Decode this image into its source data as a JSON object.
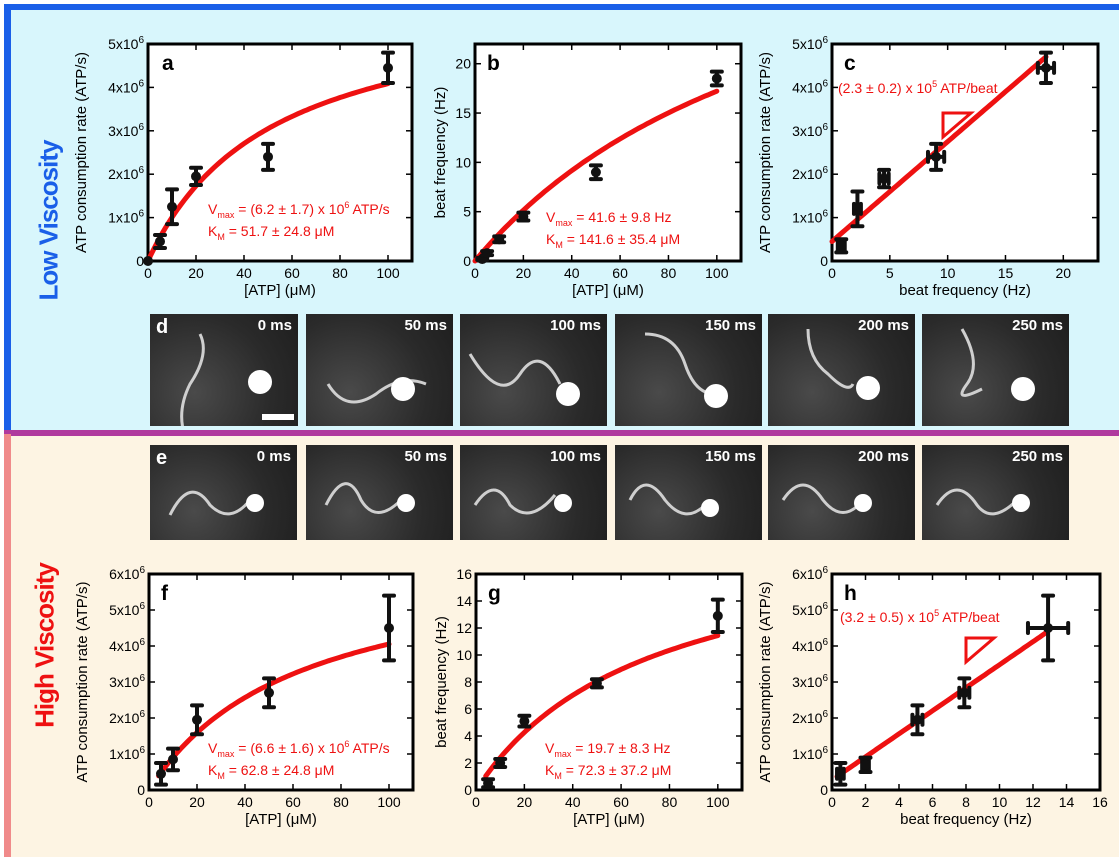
{
  "sections": {
    "low": {
      "label": "Low Viscosity",
      "color": "#1a5fe8",
      "bg": "#d8f6fc"
    },
    "high": {
      "label": "High Viscosity",
      "color": "#ee1111",
      "bg": "#fdf4e3"
    }
  },
  "colors": {
    "fit": "#ee1111",
    "marker": "#111111",
    "annotation": "#ee1111",
    "divider_top": "#1a5fe8",
    "divider_mid": "#b03a9e",
    "divider_bottom": "#f08a8a"
  },
  "frames": {
    "d": {
      "letter": "d",
      "times": [
        "0 ms",
        "50 ms",
        "100 ms",
        "150 ms",
        "200 ms",
        "250 ms"
      ]
    },
    "e": {
      "letter": "e",
      "times": [
        "0 ms",
        "50 ms",
        "100 ms",
        "150 ms",
        "200 ms",
        "250 ms"
      ]
    }
  },
  "chart_data": [
    {
      "panel": "a",
      "type": "scatter",
      "xlabel": "[ATP] (μM)",
      "ylabel": "ATP consumption rate (ATP/s)",
      "xlim": [
        0,
        110
      ],
      "ylim": [
        0,
        5000000
      ],
      "xticks": [
        0,
        20,
        40,
        60,
        80,
        100
      ],
      "xtick_labels": [
        "0",
        "20",
        "40",
        "60",
        "80",
        "100"
      ],
      "yticks": [
        0,
        1000000,
        2000000,
        3000000,
        4000000,
        5000000
      ],
      "ytick_labels": [
        "0",
        "1x10⁶",
        "2x10⁶",
        "3x10⁶",
        "4x10⁶",
        "5x10⁶"
      ],
      "points": [
        {
          "x": 0,
          "y": 0,
          "yerr": 0
        },
        {
          "x": 5,
          "y": 450000,
          "yerr": 150000
        },
        {
          "x": 10,
          "y": 1250000,
          "yerr": 400000
        },
        {
          "x": 20,
          "y": 1950000,
          "yerr": 200000
        },
        {
          "x": 50,
          "y": 2400000,
          "yerr": 300000
        },
        {
          "x": 100,
          "y": 4450000,
          "yerr": 350000
        }
      ],
      "fit": {
        "model": "michaelis-menten",
        "vmax": 6200000,
        "km": 51.7
      },
      "annotation": {
        "line1": {
          "prefix": "V",
          "sub": "max",
          "text": " = (6.2 ± 1.7) x 10⁶ ATP/s"
        },
        "line2": {
          "prefix": "K",
          "sub": "M",
          "text": " =  51.7 ± 24.8 μM"
        }
      }
    },
    {
      "panel": "b",
      "type": "scatter",
      "xlabel": "[ATP] (μM)",
      "ylabel": "beat frequency (Hz)",
      "xlim": [
        0,
        110
      ],
      "ylim": [
        0,
        22
      ],
      "xticks": [
        0,
        20,
        40,
        60,
        80,
        100
      ],
      "xtick_labels": [
        "0",
        "20",
        "40",
        "60",
        "80",
        "100"
      ],
      "yticks": [
        0,
        5,
        10,
        15,
        20
      ],
      "ytick_labels": [
        "0",
        "5",
        "10",
        "15",
        "20"
      ],
      "points": [
        {
          "x": 3,
          "y": 0.2,
          "yerr": 0.1
        },
        {
          "x": 5,
          "y": 0.8,
          "yerr": 0.2
        },
        {
          "x": 10,
          "y": 2.2,
          "yerr": 0.3
        },
        {
          "x": 20,
          "y": 4.5,
          "yerr": 0.4
        },
        {
          "x": 50,
          "y": 9.0,
          "yerr": 0.7
        },
        {
          "x": 100,
          "y": 18.5,
          "yerr": 0.7
        }
      ],
      "fit": {
        "model": "michaelis-menten",
        "vmax": 41.6,
        "km": 141.6
      },
      "annotation": {
        "line1": {
          "prefix": "V",
          "sub": "max",
          "text": " = 41.6 ± 9.8 Hz"
        },
        "line2": {
          "prefix": "K",
          "sub": "M",
          "text": " =  141.6 ± 35.4 μM"
        }
      }
    },
    {
      "panel": "c",
      "type": "scatter",
      "xlabel": "beat frequency (Hz)",
      "ylabel": "ATP consumption rate (ATP/s)",
      "xlim": [
        0,
        23
      ],
      "ylim": [
        0,
        5000000
      ],
      "xticks": [
        0,
        5,
        10,
        15,
        20
      ],
      "xtick_labels": [
        "0",
        "5",
        "10",
        "15",
        "20"
      ],
      "yticks": [
        0,
        1000000,
        2000000,
        3000000,
        4000000,
        5000000
      ],
      "ytick_labels": [
        "0",
        "1x10⁶",
        "2x10⁶",
        "3x10⁶",
        "4x10⁶",
        "5x10⁶"
      ],
      "points": [
        {
          "x": 0.8,
          "y": 350000,
          "xerr": 0.3,
          "yerr": 150000
        },
        {
          "x": 2.2,
          "y": 1200000,
          "xerr": 0.3,
          "yerr": 400000
        },
        {
          "x": 4.5,
          "y": 1900000,
          "xerr": 0.4,
          "yerr": 200000
        },
        {
          "x": 9.0,
          "y": 2400000,
          "xerr": 0.7,
          "yerr": 300000
        },
        {
          "x": 18.5,
          "y": 4450000,
          "xerr": 0.7,
          "yerr": 350000
        }
      ],
      "fit": {
        "model": "linear",
        "slope": 230000,
        "intercept": 450000,
        "x_range": [
          0,
          18.5
        ]
      },
      "annotation": {
        "text": "(2.3 ± 0.2) x 10⁵ ATP/beat"
      }
    },
    {
      "panel": "f",
      "type": "scatter",
      "xlabel": "[ATP] (μM)",
      "ylabel": "ATP consumption rate (ATP/s)",
      "xlim": [
        0,
        110
      ],
      "ylim": [
        0,
        6000000
      ],
      "xticks": [
        0,
        20,
        40,
        60,
        80,
        100
      ],
      "xtick_labels": [
        "0",
        "20",
        "40",
        "60",
        "80",
        "100"
      ],
      "yticks": [
        0,
        1000000,
        2000000,
        3000000,
        4000000,
        5000000,
        6000000
      ],
      "ytick_labels": [
        "0",
        "1x10⁶",
        "2x10⁶",
        "3x10⁶",
        "4x10⁶",
        "5x10⁶",
        "6x10⁶"
      ],
      "points": [
        {
          "x": 5,
          "y": 450000,
          "yerr": 300000
        },
        {
          "x": 10,
          "y": 850000,
          "yerr": 300000
        },
        {
          "x": 20,
          "y": 1950000,
          "yerr": 400000
        },
        {
          "x": 50,
          "y": 2700000,
          "yerr": 400000
        },
        {
          "x": 100,
          "y": 4500000,
          "yerr": 900000
        }
      ],
      "fit": {
        "model": "michaelis-menten",
        "vmax": 6600000,
        "km": 62.8,
        "x_range": [
          4,
          100
        ]
      },
      "annotation": {
        "line1": {
          "prefix": "V",
          "sub": "max",
          "text": " = (6.6 ± 1.6) x 10⁶ ATP/s"
        },
        "line2": {
          "prefix": "K",
          "sub": "M",
          "text": " =  62.8 ± 24.8 μM"
        }
      }
    },
    {
      "panel": "g",
      "type": "scatter",
      "xlabel": "[ATP] (μM)",
      "ylabel": "beat frequency (Hz)",
      "xlim": [
        0,
        110
      ],
      "ylim": [
        0,
        16
      ],
      "xticks": [
        0,
        20,
        40,
        60,
        80,
        100
      ],
      "xtick_labels": [
        "0",
        "20",
        "40",
        "60",
        "80",
        "100"
      ],
      "yticks": [
        0,
        2,
        4,
        6,
        8,
        10,
        12,
        14,
        16
      ],
      "ytick_labels": [
        "0",
        "2",
        "4",
        "6",
        "8",
        "10",
        "12",
        "14",
        "16"
      ],
      "points": [
        {
          "x": 5,
          "y": 0.5,
          "yerr": 0.3
        },
        {
          "x": 10,
          "y": 2.0,
          "yerr": 0.3
        },
        {
          "x": 20,
          "y": 5.1,
          "yerr": 0.4
        },
        {
          "x": 50,
          "y": 7.9,
          "yerr": 0.3
        },
        {
          "x": 100,
          "y": 12.9,
          "yerr": 1.2
        }
      ],
      "fit": {
        "model": "michaelis-menten",
        "vmax": 19.7,
        "km": 72.3,
        "x_range": [
          4,
          100
        ]
      },
      "annotation": {
        "line1": {
          "prefix": "V",
          "sub": "max",
          "text": " = 19.7 ±  8.3 Hz"
        },
        "line2": {
          "prefix": "K",
          "sub": "M",
          "text": " = 72.3 ± 37.2 μM"
        }
      }
    },
    {
      "panel": "h",
      "type": "scatter",
      "xlabel": "beat frequency (Hz)",
      "ylabel": "ATP consumption rate (ATP/s)",
      "xlim": [
        0,
        16
      ],
      "ylim": [
        0,
        6000000
      ],
      "xticks": [
        0,
        2,
        4,
        6,
        8,
        10,
        12,
        14,
        16
      ],
      "xtick_labels": [
        "0",
        "2",
        "4",
        "6",
        "8",
        "10",
        "12",
        "14",
        "16"
      ],
      "yticks": [
        0,
        1000000,
        2000000,
        3000000,
        4000000,
        5000000,
        6000000
      ],
      "ytick_labels": [
        "0",
        "1x10⁶",
        "2x10⁶",
        "3x10⁶",
        "4x10⁶",
        "5x10⁶",
        "6x10⁶"
      ],
      "points": [
        {
          "x": 0.5,
          "y": 450000,
          "xerr": 0.2,
          "yerr": 300000
        },
        {
          "x": 2.0,
          "y": 700000,
          "xerr": 0.2,
          "yerr": 200000
        },
        {
          "x": 5.1,
          "y": 1950000,
          "xerr": 0.3,
          "yerr": 400000
        },
        {
          "x": 7.9,
          "y": 2700000,
          "xerr": 0.3,
          "yerr": 400000
        },
        {
          "x": 12.9,
          "y": 4500000,
          "xerr": 1.2,
          "yerr": 900000
        }
      ],
      "fit": {
        "model": "linear",
        "slope": 320000,
        "intercept": 280000,
        "x_range": [
          0.3,
          12.9
        ]
      },
      "annotation": {
        "text": "(3.2 ± 0.5) x 10⁵ ATP/beat"
      }
    }
  ]
}
